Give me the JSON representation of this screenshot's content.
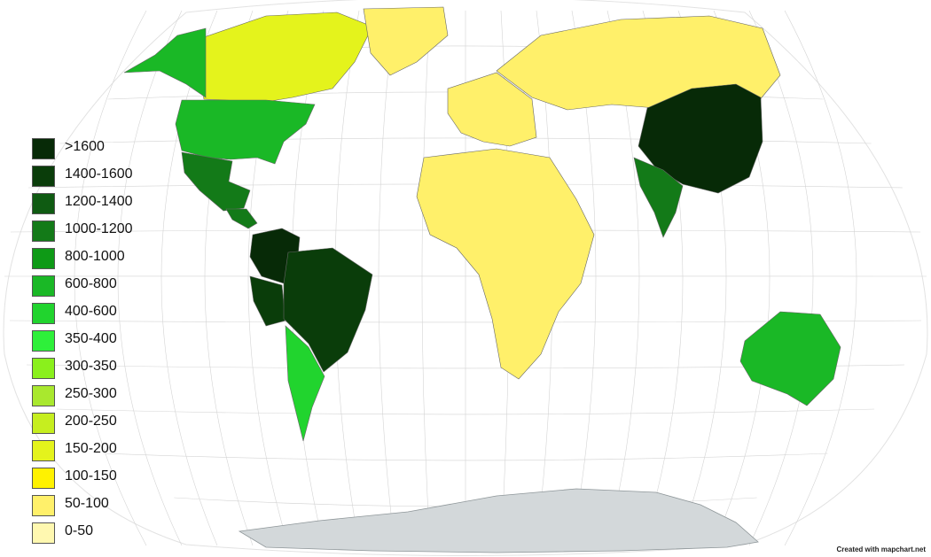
{
  "legend": {
    "items": [
      {
        "label": ">1600",
        "color": "#072a07"
      },
      {
        "label": "1400-1600",
        "color": "#0a3d0a"
      },
      {
        "label": "1200-1400",
        "color": "#0f5b12"
      },
      {
        "label": "1000-1200",
        "color": "#137a18"
      },
      {
        "label": "800-1000",
        "color": "#0e9a16"
      },
      {
        "label": "600-800",
        "color": "#1ab826"
      },
      {
        "label": "400-600",
        "color": "#21d42e"
      },
      {
        "label": "350-400",
        "color": "#2ef03a"
      },
      {
        "label": "300-350",
        "color": "#8af01c"
      },
      {
        "label": "250-300",
        "color": "#a9e82e"
      },
      {
        "label": "200-250",
        "color": "#c6ee1f"
      },
      {
        "label": "150-200",
        "color": "#e4f31c"
      },
      {
        "label": "100-150",
        "color": "#fff200"
      },
      {
        "label": "50-100",
        "color": "#fff06a"
      },
      {
        "label": "0-50",
        "color": "#fff8b0"
      }
    ]
  },
  "credit": "Created with mapchart.net",
  "colors": {
    "ocean": "#ffffff",
    "graticule": "#d4d4d4",
    "border": "#666666",
    "antarctica": "#d3d8da"
  },
  "regions": [
    {
      "name": "china",
      "bin": ">1600"
    },
    {
      "name": "colombia",
      "bin": ">1600"
    },
    {
      "name": "brazil",
      "bin": "1400-1600"
    },
    {
      "name": "peru",
      "bin": "1400-1600"
    },
    {
      "name": "mexico",
      "bin": "1000-1200"
    },
    {
      "name": "india",
      "bin": "1000-1200"
    },
    {
      "name": "usa",
      "bin": "600-800"
    },
    {
      "name": "alaska",
      "bin": "600-800"
    },
    {
      "name": "australia",
      "bin": "600-800"
    },
    {
      "name": "argentina",
      "bin": "400-600"
    },
    {
      "name": "canada",
      "bin": "150-200"
    },
    {
      "name": "russia",
      "bin": "50-100"
    },
    {
      "name": "greenland",
      "bin": "50-100"
    },
    {
      "name": "africa",
      "bin": "50-100"
    }
  ]
}
